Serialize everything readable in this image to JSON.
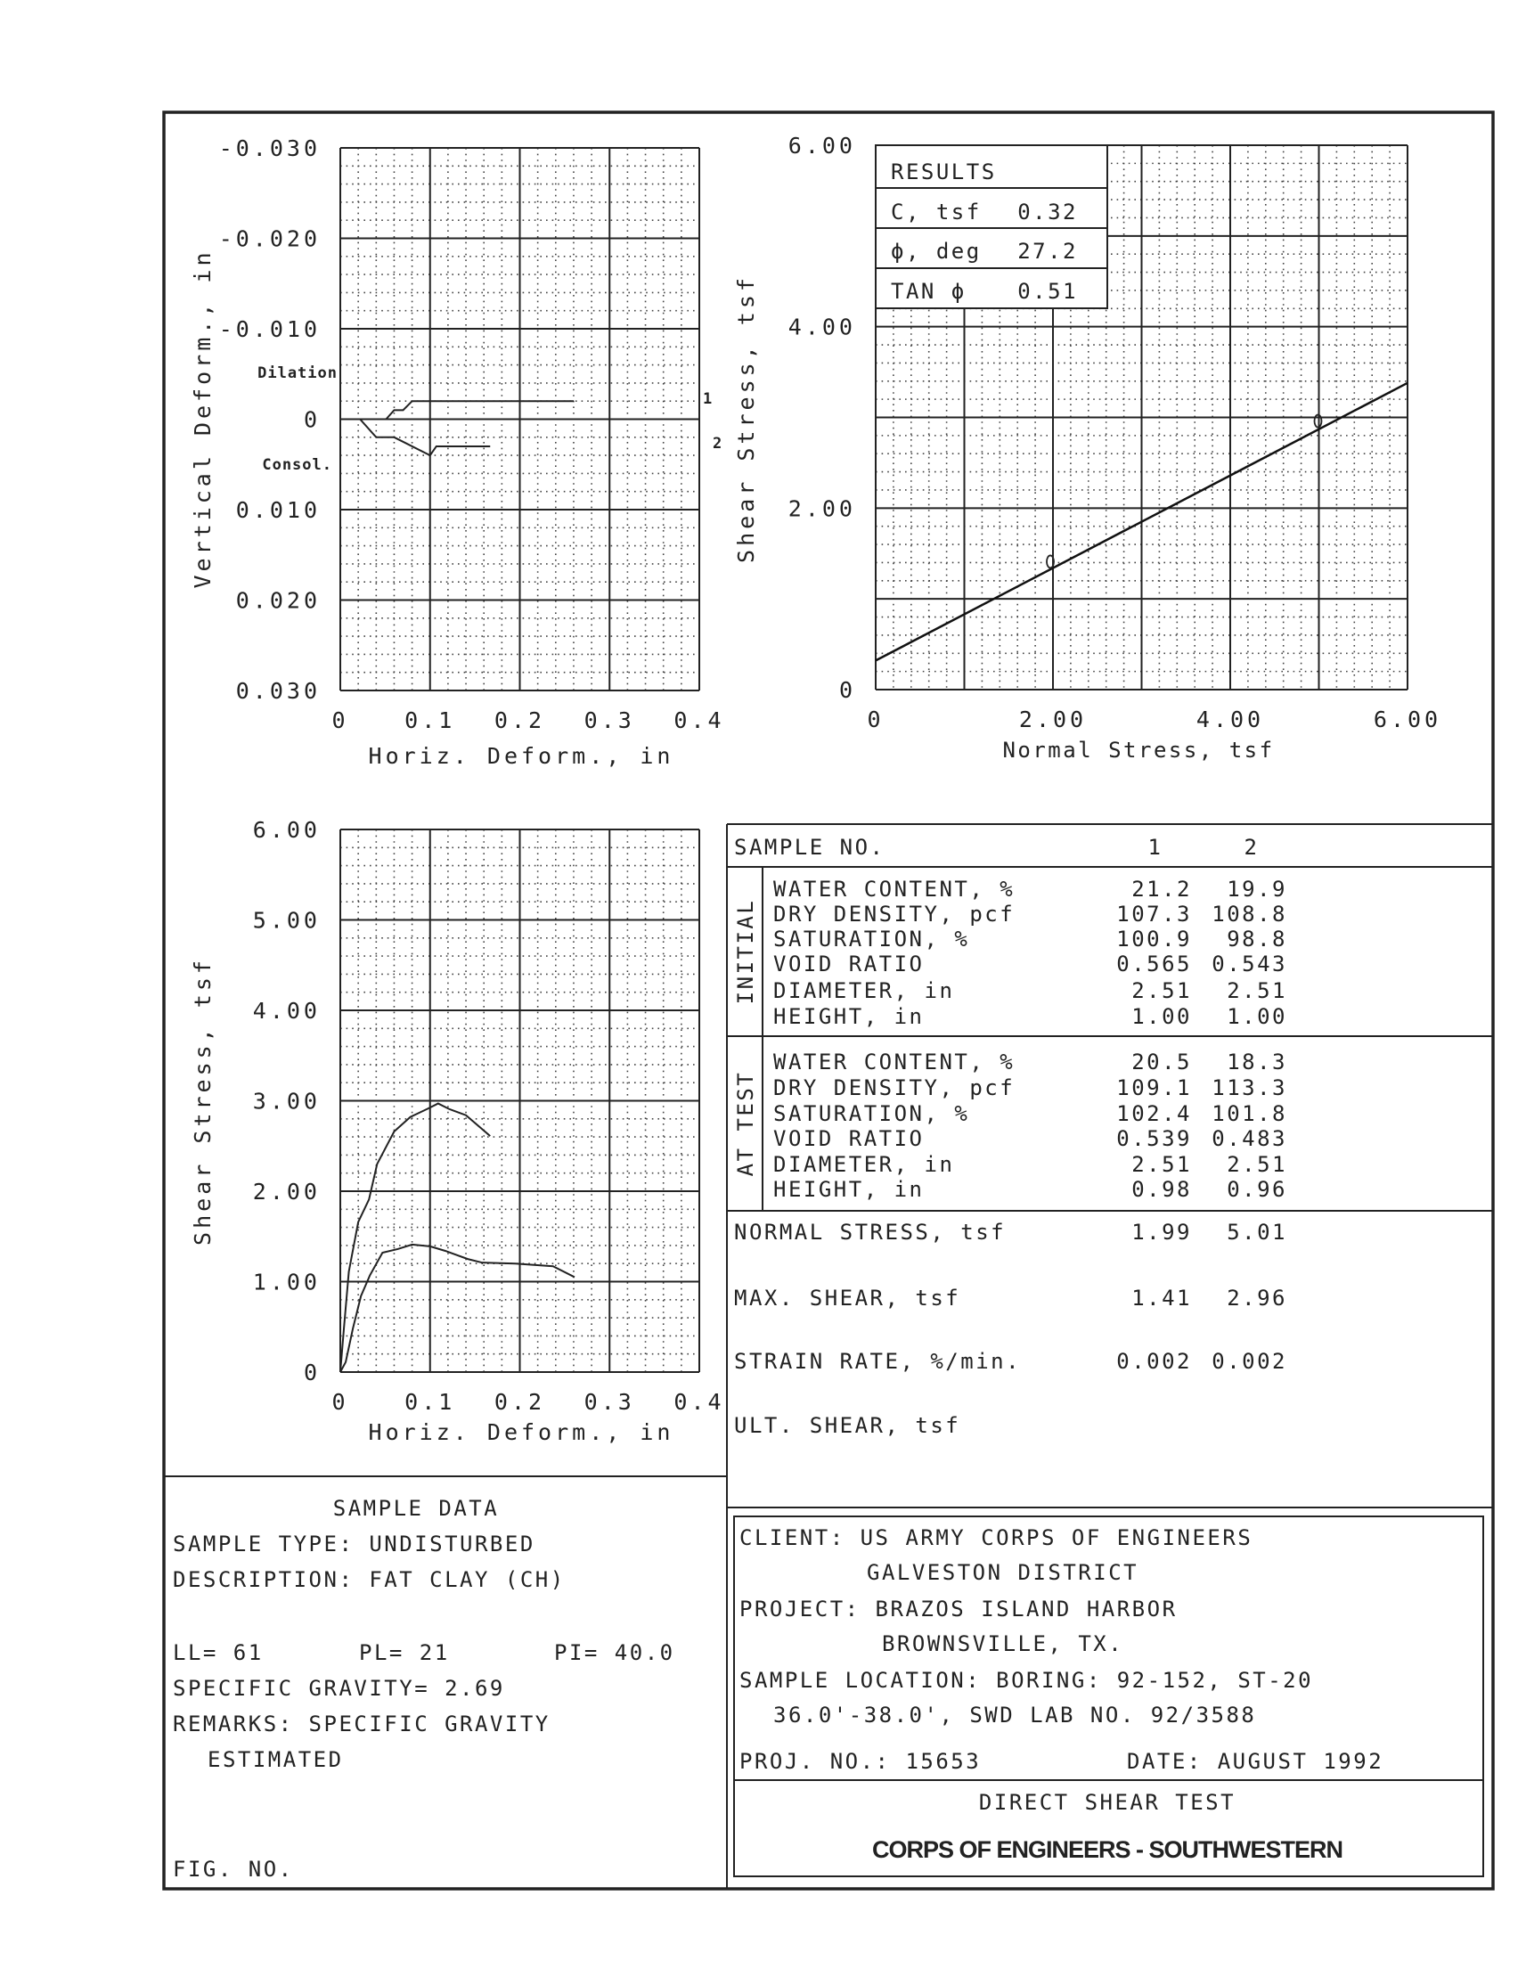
{
  "chart_data": [
    {
      "type": "line",
      "xlabel": "Horiz. Deform., in",
      "ylabel": "Vertical Deform., in",
      "xlim": [
        0,
        0.4
      ],
      "ylim": [
        -0.03,
        0.03
      ],
      "y_inverted": true,
      "grid": true,
      "xticks": [
        0,
        0.1,
        0.2,
        0.3,
        0.4
      ],
      "xtick_labels": [
        "0",
        "0.1",
        "0.2",
        "0.3",
        "0.4"
      ],
      "yticks": [
        -0.03,
        -0.02,
        -0.01,
        0,
        0.01,
        0.02,
        0.03
      ],
      "ytick_labels": [
        "-0.030",
        "-0.020",
        "-0.010",
        "0",
        "0.010",
        "0.020",
        "0.030"
      ],
      "annotations": {
        "dilation": "Dilation",
        "consol": "Consol."
      },
      "series": [
        {
          "name": "1",
          "x": [
            0,
            0.051,
            0.06,
            0.07,
            0.08,
            0.26
          ],
          "y": [
            0,
            0,
            -0.001,
            -0.001,
            -0.002,
            -0.002
          ]
        },
        {
          "name": "2",
          "x": [
            0,
            0.022,
            0.04,
            0.06,
            0.1,
            0.107,
            0.167
          ],
          "y": [
            0,
            0,
            0.002,
            0.002,
            0.004,
            0.003,
            0.003
          ]
        }
      ]
    },
    {
      "type": "line",
      "xlabel": "Normal Stress,  tsf",
      "ylabel": "Shear Stress,  tsf",
      "xlim": [
        0,
        6
      ],
      "ylim": [
        0,
        6
      ],
      "grid": true,
      "xticks": [
        0,
        2,
        4,
        6
      ],
      "xtick_labels": [
        "0",
        "2.00",
        "4.00",
        "6.00"
      ],
      "yticks": [
        0,
        2,
        4,
        6
      ],
      "ytick_labels": [
        "0",
        "2.00",
        "4.00",
        "6.00"
      ],
      "failure_envelope": {
        "c": 0.32,
        "tan_phi": 0.51,
        "x": [
          0,
          6
        ],
        "y": [
          0.32,
          3.38
        ]
      },
      "points": [
        {
          "x": 1.99,
          "y": 1.41
        },
        {
          "x": 5.01,
          "y": 2.96
        }
      ],
      "results": {
        "title": "RESULTS",
        "rows": [
          {
            "label": "C,  tsf",
            "value": "0.32"
          },
          {
            "label": "ϕ,  deg",
            "value": "27.2"
          },
          {
            "label": "TAN ϕ",
            "value": "0.51"
          }
        ]
      }
    },
    {
      "type": "line",
      "xlabel": "Horiz. Deform.,   in",
      "ylabel": "Shear Stress,  tsf",
      "xlim": [
        0,
        0.4
      ],
      "ylim": [
        0,
        6
      ],
      "grid": true,
      "xticks": [
        0,
        0.1,
        0.2,
        0.3,
        0.4
      ],
      "xtick_labels": [
        "0",
        "0.1",
        "0.2",
        "0.3",
        "0.4"
      ],
      "yticks": [
        0,
        1,
        2,
        3,
        4,
        5,
        6
      ],
      "ytick_labels": [
        "0",
        "1.00",
        "2.00",
        "3.00",
        "4.00",
        "5.00",
        "6.00"
      ],
      "series": [
        {
          "x": [
            0,
            0.006,
            0.014,
            0.023,
            0.033,
            0.047,
            0.064,
            0.08,
            0.1,
            0.117,
            0.142,
            0.158,
            0.195,
            0.237,
            0.261
          ],
          "y": [
            0,
            0.11,
            0.48,
            0.84,
            1.07,
            1.32,
            1.36,
            1.41,
            1.39,
            1.34,
            1.25,
            1.21,
            1.2,
            1.17,
            1.05
          ]
        },
        {
          "x": [
            0,
            0.004,
            0.0095,
            0.02,
            0.032,
            0.041,
            0.06,
            0.078,
            0.097,
            0.109,
            0.121,
            0.14,
            0.167
          ],
          "y": [
            0,
            0.48,
            1.11,
            1.66,
            1.91,
            2.3,
            2.66,
            2.82,
            2.91,
            2.97,
            2.91,
            2.84,
            2.61
          ]
        }
      ]
    }
  ],
  "table": {
    "header": {
      "label": "SAMPLE NO.",
      "cols": [
        "1",
        "2"
      ]
    },
    "initial": {
      "section": "INITIAL",
      "rows": [
        {
          "label": "WATER CONTENT, %",
          "v1": "21.2",
          "v2": "19.9"
        },
        {
          "label": "DRY DENSITY, pcf",
          "v1": "107.3",
          "v2": "108.8"
        },
        {
          "label": "SATURATION, %",
          "v1": "100.9",
          "v2": "98.8"
        },
        {
          "label": "VOID RATIO",
          "v1": "0.565",
          "v2": "0.543"
        },
        {
          "label": "DIAMETER, in",
          "v1": "2.51",
          "v2": "2.51"
        },
        {
          "label": "HEIGHT, in",
          "v1": "1.00",
          "v2": "1.00"
        }
      ]
    },
    "at_test": {
      "section": "AT TEST",
      "rows": [
        {
          "label": "WATER CONTENT, %",
          "v1": "20.5",
          "v2": "18.3"
        },
        {
          "label": "DRY DENSITY, pcf",
          "v1": "109.1",
          "v2": "113.3"
        },
        {
          "label": "SATURATION, %",
          "v1": "102.4",
          "v2": "101.8"
        },
        {
          "label": "VOID RATIO",
          "v1": "0.539",
          "v2": "0.483"
        },
        {
          "label": "DIAMETER, in",
          "v1": "2.51",
          "v2": "2.51"
        },
        {
          "label": "HEIGHT, in",
          "v1": "0.98",
          "v2": "0.96"
        }
      ]
    },
    "summary": [
      {
        "label": "NORMAL STRESS, tsf",
        "v1": "1.99",
        "v2": "5.01"
      },
      {
        "label": "MAX. SHEAR, tsf",
        "v1": "1.41",
        "v2": "2.96"
      },
      {
        "label": "STRAIN RATE, %/min.",
        "v1": "0.002",
        "v2": "0.002"
      },
      {
        "label": "ULT. SHEAR, tsf",
        "v1": "",
        "v2": ""
      }
    ]
  },
  "sample_data": {
    "title": "SAMPLE DATA",
    "sample_type": "SAMPLE TYPE:  UNDISTURBED",
    "description": "DESCRIPTION:  FAT CLAY  (CH)",
    "ll": "LL= 61",
    "pl": "PL= 21",
    "pi": "PI= 40.0",
    "specific_gravity": "SPECIFIC GRAVITY= 2.69",
    "remarks": "REMARKS:  SPECIFIC GRAVITY",
    "remarks_cont": "ESTIMATED",
    "fig_no": "FIG. NO."
  },
  "title_block": {
    "client": "CLIENT:  US ARMY CORPS OF ENGINEERS",
    "client_cont": "GALVESTON DISTRICT",
    "project": "PROJECT:  BRAZOS ISLAND HARBOR",
    "project_cont": "BROWNSVILLE, TX.",
    "location": "SAMPLE LOCATION:  BORING:  92-152, ST-20",
    "location_cont": "36.0'-38.0', SWD LAB NO. 92/3588",
    "proj_no": "PROJ. NO.:  15653",
    "date": "DATE:  AUGUST 1992",
    "test_name": "DIRECT SHEAR TEST",
    "org": "CORPS OF ENGINEERS - SOUTHWESTERN"
  }
}
